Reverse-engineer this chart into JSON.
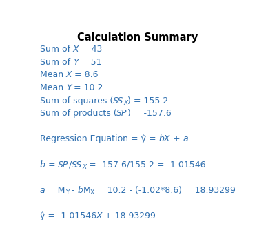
{
  "title": "Calculation Summary",
  "title_fontsize": 10.5,
  "title_color": "#000000",
  "background_color": "#ffffff",
  "blue": "#3070B0",
  "figsize": [
    3.89,
    3.31
  ],
  "dpi": 100,
  "fontsize": 9.0,
  "sub_fontsize": 6.5,
  "lines": [
    {
      "segments": [
        {
          "text": "Sum of ",
          "italic": false,
          "sub": false
        },
        {
          "text": "X",
          "italic": true,
          "sub": false
        },
        {
          "text": " = 43",
          "italic": false,
          "sub": false
        }
      ]
    },
    {
      "segments": [
        {
          "text": "Sum of ",
          "italic": false,
          "sub": false
        },
        {
          "text": "Y",
          "italic": true,
          "sub": false
        },
        {
          "text": " = 51",
          "italic": false,
          "sub": false
        }
      ]
    },
    {
      "segments": [
        {
          "text": "Mean ",
          "italic": false,
          "sub": false
        },
        {
          "text": "X",
          "italic": true,
          "sub": false
        },
        {
          "text": " = 8.6",
          "italic": false,
          "sub": false
        }
      ]
    },
    {
      "segments": [
        {
          "text": "Mean ",
          "italic": false,
          "sub": false
        },
        {
          "text": "Y",
          "italic": true,
          "sub": false
        },
        {
          "text": " = 10.2",
          "italic": false,
          "sub": false
        }
      ]
    },
    {
      "segments": [
        {
          "text": "Sum of squares (",
          "italic": false,
          "sub": false
        },
        {
          "text": "SS",
          "italic": true,
          "sub": false
        },
        {
          "text": "X",
          "italic": true,
          "sub": true
        },
        {
          "text": ") = 155.2",
          "italic": false,
          "sub": false
        }
      ]
    },
    {
      "segments": [
        {
          "text": "Sum of products (",
          "italic": false,
          "sub": false
        },
        {
          "text": "SP",
          "italic": true,
          "sub": false
        },
        {
          "text": ") = -157.6",
          "italic": false,
          "sub": false
        }
      ]
    },
    {
      "segments": []
    },
    {
      "segments": [
        {
          "text": "Regression Equation = ŷ = ",
          "italic": false,
          "sub": false
        },
        {
          "text": "bX",
          "italic": true,
          "sub": false
        },
        {
          "text": " + ",
          "italic": false,
          "sub": false
        },
        {
          "text": "a",
          "italic": true,
          "sub": false
        }
      ]
    },
    {
      "segments": []
    },
    {
      "segments": [
        {
          "text": "b",
          "italic": true,
          "sub": false
        },
        {
          "text": " = ",
          "italic": false,
          "sub": false
        },
        {
          "text": "SP",
          "italic": true,
          "sub": false
        },
        {
          "text": "/",
          "italic": false,
          "sub": false
        },
        {
          "text": "SS",
          "italic": true,
          "sub": false
        },
        {
          "text": "X",
          "italic": true,
          "sub": true
        },
        {
          "text": " = -157.6/155.2 = -1.01546",
          "italic": false,
          "sub": false
        }
      ]
    },
    {
      "segments": []
    },
    {
      "segments": [
        {
          "text": "a",
          "italic": true,
          "sub": false
        },
        {
          "text": " = M",
          "italic": false,
          "sub": false
        },
        {
          "text": "Y",
          "italic": false,
          "sub": true
        },
        {
          "text": " - ",
          "italic": false,
          "sub": false
        },
        {
          "text": "b",
          "italic": true,
          "sub": false
        },
        {
          "text": "M",
          "italic": false,
          "sub": false
        },
        {
          "text": "X",
          "italic": false,
          "sub": true
        },
        {
          "text": " = 10.2 - (-1.02*8.6) = 18.93299",
          "italic": false,
          "sub": false
        }
      ]
    },
    {
      "segments": []
    },
    {
      "segments": [
        {
          "text": "ŷ = -1.01546",
          "italic": false,
          "sub": false
        },
        {
          "text": "X",
          "italic": true,
          "sub": false
        },
        {
          "text": " + 18.93299",
          "italic": false,
          "sub": false
        }
      ]
    }
  ]
}
